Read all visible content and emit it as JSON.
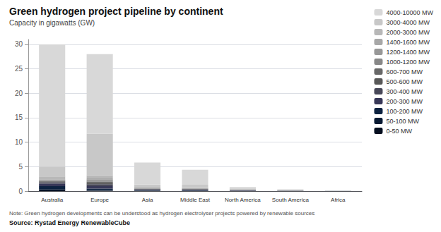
{
  "chart_data": {
    "type": "bar",
    "stacked": true,
    "title": "Green hydrogen project pipeline by continent",
    "subtitle": "Capacity in gigawatts (GW)",
    "note": "Note: Green hydrogen developments can be understood as hydrogen electrolyser projects powered by renewable sources",
    "source": "Source: Rystad Energy RenewableCube",
    "categories": [
      "Australia",
      "Europe",
      "Asia",
      "Middle East",
      "North America",
      "South America",
      "Africa"
    ],
    "series": [
      {
        "name": "0-50 MW",
        "color": "#060f20",
        "values": [
          0.15,
          0.08,
          0.05,
          0.04,
          0.02,
          0.01,
          0.01
        ]
      },
      {
        "name": "50-100 MW",
        "color": "#091a33",
        "values": [
          0.25,
          0.12,
          0.05,
          0.04,
          0.02,
          0.01,
          0.005
        ]
      },
      {
        "name": "100-200 MW",
        "color": "#0d2240",
        "values": [
          0.6,
          0.3,
          0.1,
          0.1,
          0.05,
          0.02,
          0.01
        ]
      },
      {
        "name": "200-300 MW",
        "color": "#383858",
        "values": [
          0.5,
          0.5,
          0.1,
          0.1,
          0.05,
          0.02,
          0.01
        ]
      },
      {
        "name": "300-400 MW",
        "color": "#484858",
        "values": [
          0.3,
          0.4,
          0.1,
          0.08,
          0.04,
          0.015,
          0.005
        ]
      },
      {
        "name": "500-600 MW",
        "color": "#585858",
        "values": [
          0.2,
          0.3,
          0.05,
          0.06,
          0.03,
          0.01,
          0.004
        ]
      },
      {
        "name": "600-700 MW",
        "color": "#686868",
        "values": [
          0.1,
          0.2,
          0.05,
          0.05,
          0.02,
          0.01,
          0.003
        ]
      },
      {
        "name": "1000-1200 MW",
        "color": "#888888",
        "values": [
          0.1,
          0.3,
          0.05,
          0.05,
          0.02,
          0.01,
          0.002
        ]
      },
      {
        "name": "1200-1400 MW",
        "color": "#989898",
        "values": [
          0.1,
          0.2,
          0.05,
          0.04,
          0.02,
          0.01,
          0.002
        ]
      },
      {
        "name": "1400-1600 MW",
        "color": "#a8a8a8",
        "values": [
          0.1,
          0.2,
          0.05,
          0.04,
          0.02,
          0.01,
          0.002
        ]
      },
      {
        "name": "2000-3000 MW",
        "color": "#b8b8b8",
        "values": [
          0.6,
          0.6,
          0.2,
          0.2,
          0.1,
          0.05,
          0.01
        ]
      },
      {
        "name": "3000-4000 MW",
        "color": "#c8c8c8",
        "values": [
          2.0,
          8.5,
          0.5,
          0.5,
          0.15,
          0.1,
          0.02
        ]
      },
      {
        "name": "4000-10000 MW",
        "color": "#d8d8d8",
        "values": [
          25.0,
          16.3,
          4.5,
          3.05,
          0.3,
          0.1,
          0.05
        ]
      }
    ],
    "ylim": [
      0,
      31
    ],
    "yticks": [
      0,
      5,
      10,
      15,
      20,
      25,
      30
    ],
    "grid": true,
    "legend": "right"
  }
}
